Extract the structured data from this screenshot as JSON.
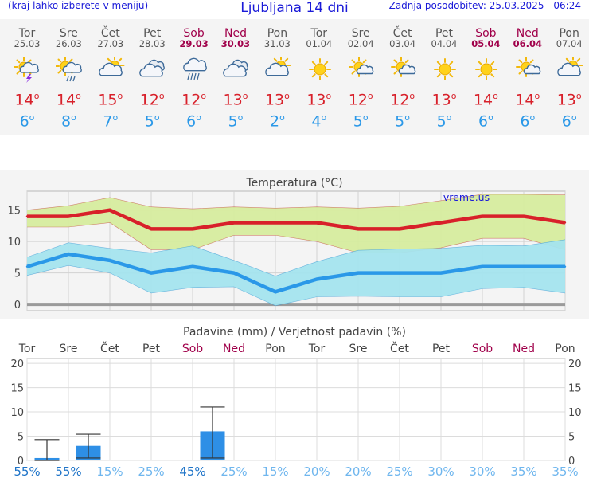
{
  "header": {
    "menu_hint": "(kraj lahko izberete v meniju)",
    "title": "Ljubljana 14 dni",
    "updated": "Zadnja posodobitev: 25.03.2025 - 06:24"
  },
  "colors": {
    "weekday": "#555555",
    "weekend": "#a0004a",
    "max_temp": "#d8202a",
    "min_temp": "#2a98e8",
    "max_band": "#d6ec9e",
    "min_band": "#a4e4ee",
    "precip_bar": "#2e8fe6"
  },
  "forecast": [
    {
      "day": "Tor",
      "date": "25.03",
      "weekend": false,
      "icon": "thunderstorm-sun-icon",
      "tmax": "14",
      "tmin": "6"
    },
    {
      "day": "Sre",
      "date": "26.03",
      "weekend": false,
      "icon": "sun-cloud-rain-icon",
      "tmax": "14",
      "tmin": "8"
    },
    {
      "day": "Čet",
      "date": "27.03",
      "weekend": false,
      "icon": "partly-cloudy-icon",
      "tmax": "15",
      "tmin": "7"
    },
    {
      "day": "Pet",
      "date": "28.03",
      "weekend": false,
      "icon": "cloudy-icon",
      "tmax": "12",
      "tmin": "5"
    },
    {
      "day": "Sob",
      "date": "29.03",
      "weekend": true,
      "icon": "cloud-rain-icon",
      "tmax": "12",
      "tmin": "6"
    },
    {
      "day": "Ned",
      "date": "30.03",
      "weekend": true,
      "icon": "cloudy-icon",
      "tmax": "13",
      "tmin": "5"
    },
    {
      "day": "Pon",
      "date": "31.03",
      "weekend": false,
      "icon": "partly-cloudy-icon",
      "tmax": "13",
      "tmin": "2"
    },
    {
      "day": "Tor",
      "date": "01.04",
      "weekend": false,
      "icon": "sunny-icon",
      "tmax": "13",
      "tmin": "4"
    },
    {
      "day": "Sre",
      "date": "02.04",
      "weekend": false,
      "icon": "mostly-sunny-icon",
      "tmax": "12",
      "tmin": "5"
    },
    {
      "day": "Čet",
      "date": "03.04",
      "weekend": false,
      "icon": "mostly-sunny-icon",
      "tmax": "12",
      "tmin": "5"
    },
    {
      "day": "Pet",
      "date": "04.04",
      "weekend": false,
      "icon": "sunny-icon",
      "tmax": "13",
      "tmin": "5"
    },
    {
      "day": "Sob",
      "date": "05.04",
      "weekend": true,
      "icon": "sunny-icon",
      "tmax": "14",
      "tmin": "6"
    },
    {
      "day": "Ned",
      "date": "06.04",
      "weekend": true,
      "icon": "mostly-sunny-icon",
      "tmax": "14",
      "tmin": "6"
    },
    {
      "day": "Pon",
      "date": "07.04",
      "weekend": false,
      "icon": "partly-cloudy-icon",
      "tmax": "13",
      "tmin": "6"
    }
  ],
  "chart_data": [
    {
      "type": "line",
      "title": "Temperatura (°C)",
      "watermark": "vreme.us",
      "categories": [
        "25.03",
        "26.03",
        "27.03",
        "28.03",
        "29.03",
        "30.03",
        "31.03",
        "01.04",
        "02.04",
        "03.04",
        "04.04",
        "05.04",
        "06.04",
        "07.04"
      ],
      "ylim": [
        -1,
        18
      ],
      "yticks": [
        0,
        5,
        10,
        15
      ],
      "grid": true,
      "series": [
        {
          "values": [
            14,
            14,
            15,
            12,
            12,
            13,
            13,
            13,
            12,
            12,
            13,
            14,
            14,
            13
          ],
          "band_low": [
            12.3,
            12.3,
            13,
            8.7,
            8.7,
            11,
            11,
            10,
            8.2,
            8.2,
            9,
            10.5,
            10.5,
            8.7
          ],
          "band_high": [
            15,
            15.7,
            17,
            15.5,
            15.2,
            15.5,
            15.3,
            15.5,
            15.3,
            15.6,
            16.5,
            17.5,
            17.5,
            17.4
          ]
        },
        {
          "values": [
            6,
            8,
            7,
            5,
            6,
            5,
            2,
            4,
            5,
            5,
            5,
            6,
            6,
            6
          ],
          "band_low": [
            4.6,
            6.2,
            5,
            1.8,
            2.7,
            2.8,
            -0.2,
            1.2,
            1.3,
            1.2,
            1.2,
            2.5,
            2.7,
            1.8
          ],
          "band_high": [
            7.5,
            9.8,
            8.9,
            8.2,
            9.3,
            7,
            4.5,
            6.8,
            8.6,
            8.8,
            8.9,
            9.4,
            9.3,
            10.3
          ]
        }
      ]
    },
    {
      "type": "bar",
      "title": "Padavine (mm) / Verjetnost padavin (%)",
      "categories": [
        "Tor",
        "Sre",
        "Čet",
        "Pet",
        "Sob",
        "Ned",
        "Pon",
        "Tor",
        "Sre",
        "Čet",
        "Pet",
        "Sob",
        "Ned",
        "Pon"
      ],
      "weekend_index": [
        4,
        5,
        11,
        12
      ],
      "ylim": [
        0,
        21
      ],
      "yticks": [
        0,
        5,
        10,
        15,
        20
      ],
      "values": [
        0.5,
        3,
        0,
        0,
        6,
        0,
        0,
        0,
        0,
        0,
        0,
        0,
        0,
        0
      ],
      "error_low": [
        0,
        0.5,
        0,
        0,
        0.5,
        0,
        0,
        0,
        0,
        0,
        0,
        0,
        0,
        0
      ],
      "error_high": [
        4.3,
        5.4,
        0,
        0,
        11,
        0,
        0,
        0,
        0,
        0,
        0,
        0,
        0,
        0
      ],
      "probability": [
        "55%",
        "55%",
        "15%",
        "25%",
        "45%",
        "25%",
        "15%",
        "20%",
        "20%",
        "25%",
        "30%",
        "30%",
        "35%",
        "35%"
      ]
    }
  ]
}
